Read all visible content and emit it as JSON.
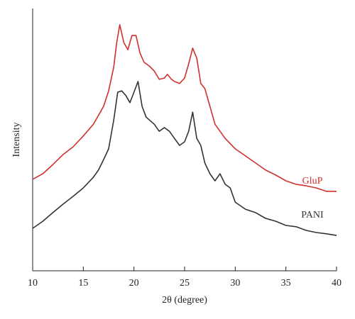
{
  "chart_data": {
    "type": "line",
    "xlabel": "2θ (degree)",
    "ylabel": "Intensity",
    "xlim": [
      10,
      40
    ],
    "xticks": [
      10,
      15,
      20,
      25,
      30,
      35,
      40
    ],
    "ylim": [
      0,
      100
    ],
    "series": [
      {
        "name": "GluP",
        "color": "#d0312d",
        "x": [
          10,
          11,
          12,
          13,
          14,
          15,
          16,
          17,
          17.5,
          18,
          18.3,
          18.6,
          19,
          19.4,
          19.8,
          20.2,
          20.6,
          21,
          21.5,
          22,
          22.5,
          23,
          23.3,
          23.7,
          24,
          24.5,
          25,
          25.4,
          25.8,
          26.2,
          26.6,
          27,
          27.5,
          28,
          28.5,
          29,
          30,
          31,
          32,
          33,
          34,
          35,
          36,
          37,
          38,
          39,
          40
        ],
        "values": [
          34.9,
          37.0,
          40.5,
          44.3,
          47.3,
          51.4,
          55.9,
          62.7,
          68.6,
          77.6,
          87.0,
          93.8,
          87.0,
          84.3,
          89.7,
          89.7,
          83.0,
          79.5,
          78.1,
          76.2,
          73.0,
          73.5,
          74.9,
          73.0,
          72.2,
          71.4,
          73.5,
          78.9,
          84.9,
          81.1,
          71.4,
          69.5,
          62.7,
          55.9,
          53.2,
          50.5,
          46.5,
          43.8,
          41.1,
          38.4,
          36.5,
          34.3,
          33.0,
          32.4,
          31.6,
          30.3,
          30.3
        ]
      },
      {
        "name": "PANI",
        "color": "#333333",
        "x": [
          10,
          11,
          12,
          13,
          14,
          15,
          16,
          16.5,
          17,
          17.5,
          18,
          18.4,
          18.8,
          19.2,
          19.6,
          20,
          20.4,
          20.8,
          21.2,
          22,
          22.5,
          23,
          23.5,
          24,
          24.5,
          25,
          25.4,
          25.8,
          26.2,
          26.6,
          27,
          27.5,
          28,
          28.5,
          29,
          29.5,
          30,
          31,
          32,
          33,
          34,
          35,
          36,
          37,
          38,
          39,
          40
        ],
        "values": [
          16.2,
          18.9,
          22.2,
          25.4,
          28.4,
          31.6,
          35.7,
          38.4,
          42.4,
          46.5,
          57.3,
          68.1,
          68.6,
          66.8,
          64.1,
          68.1,
          72.2,
          62.7,
          58.6,
          55.9,
          53.2,
          54.6,
          53.2,
          50.5,
          47.8,
          49.2,
          53.2,
          60.5,
          50.5,
          47.8,
          41.1,
          37.0,
          34.3,
          37.0,
          33.0,
          31.6,
          26.2,
          23.5,
          22.2,
          20.0,
          18.9,
          17.3,
          16.8,
          15.4,
          14.6,
          14.1,
          13.5
        ]
      }
    ]
  }
}
